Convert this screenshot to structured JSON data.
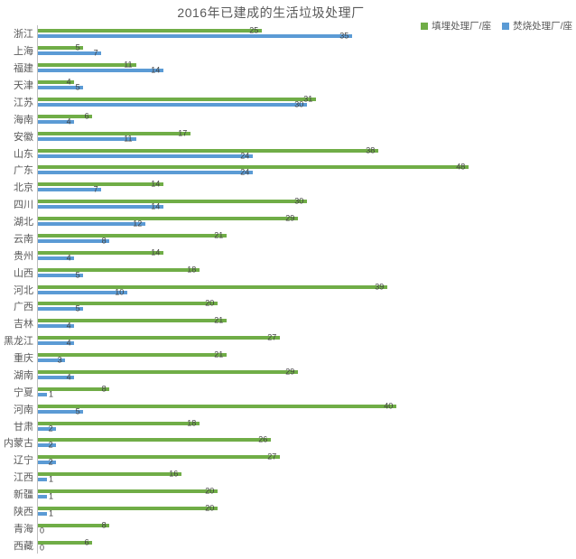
{
  "title": "2016年已建成的生活垃圾处理厂",
  "legend": {
    "items": [
      {
        "label": "填埋处理厂/座",
        "color": "#70AD47"
      },
      {
        "label": "焚烧处理厂/座",
        "color": "#5B9BD5"
      }
    ]
  },
  "colors": {
    "landfill_green": "#70AD47",
    "incineration_blue": "#5B9BD5",
    "title_text": "#595959",
    "axis_line": "#BFBFBF",
    "data_label_text": "#404040"
  },
  "chart_data": {
    "type": "bar",
    "orientation": "horizontal",
    "title": "2016年已建成的生活垃圾处理厂",
    "xlabel": "",
    "ylabel": "",
    "xlim": [
      0,
      60
    ],
    "grid": false,
    "legend_position": "top-right",
    "data_labels": true,
    "categories": [
      "浙江",
      "上海",
      "福建",
      "天津",
      "江苏",
      "海南",
      "安徽",
      "山东",
      "广东",
      "北京",
      "四川",
      "湖北",
      "云南",
      "贵州",
      "山西",
      "河北",
      "广西",
      "吉林",
      "黑龙江",
      "重庆",
      "湖南",
      "宁夏",
      "河南",
      "甘肃",
      "内蒙古",
      "辽宁",
      "江西",
      "新疆",
      "陕西",
      "青海",
      "西藏"
    ],
    "series": [
      {
        "name": "填埋处理厂/座",
        "color": "#70AD47",
        "values": [
          25,
          5,
          11,
          4,
          31,
          6,
          17,
          38,
          48,
          14,
          30,
          29,
          21,
          14,
          18,
          39,
          20,
          21,
          27,
          21,
          29,
          8,
          40,
          18,
          26,
          27,
          16,
          20,
          20,
          8,
          6
        ]
      },
      {
        "name": "焚烧处理厂/座",
        "color": "#5B9BD5",
        "values": [
          35,
          7,
          14,
          5,
          30,
          4,
          11,
          24,
          24,
          7,
          14,
          12,
          8,
          4,
          5,
          10,
          5,
          4,
          4,
          3,
          4,
          1,
          5,
          2,
          2,
          2,
          1,
          1,
          1,
          0,
          0
        ]
      }
    ]
  }
}
